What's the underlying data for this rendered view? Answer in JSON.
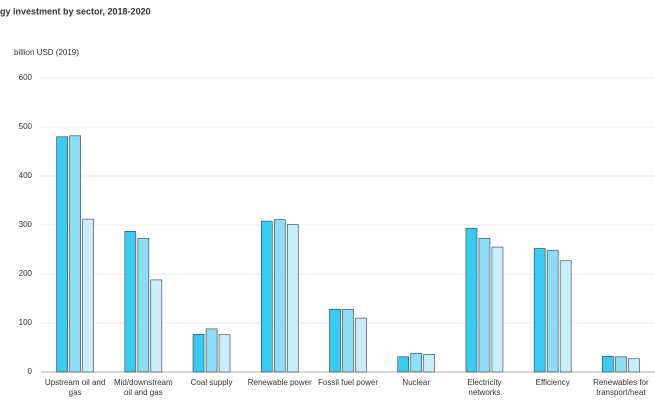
{
  "chart_data": {
    "type": "bar",
    "title": "gy investment by sector, 2018-2020",
    "y_axis_label": "billion USD (2019)",
    "categories": [
      "Upstream oil and gas",
      "Mid/downstream oil and gas",
      "Coal supply",
      "Renewable power",
      "Fossil fuel power",
      "Nuclear",
      "Electricity networks",
      "Efficiency",
      "Renewables for transport/heat"
    ],
    "series": [
      {
        "color": "#3ccbf0",
        "values": [
          480,
          287,
          77,
          308,
          128,
          31,
          293,
          252,
          32
        ]
      },
      {
        "color": "#8edcf6",
        "values": [
          482,
          273,
          88,
          311,
          128,
          38,
          273,
          248,
          31
        ]
      },
      {
        "color": "#c9eefb",
        "values": [
          312,
          188,
          76,
          301,
          110,
          36,
          255,
          227,
          27
        ]
      }
    ],
    "ylim": [
      0,
      600
    ],
    "yticks": [
      0,
      100,
      200,
      300,
      400,
      500,
      600
    ],
    "grid": true
  }
}
